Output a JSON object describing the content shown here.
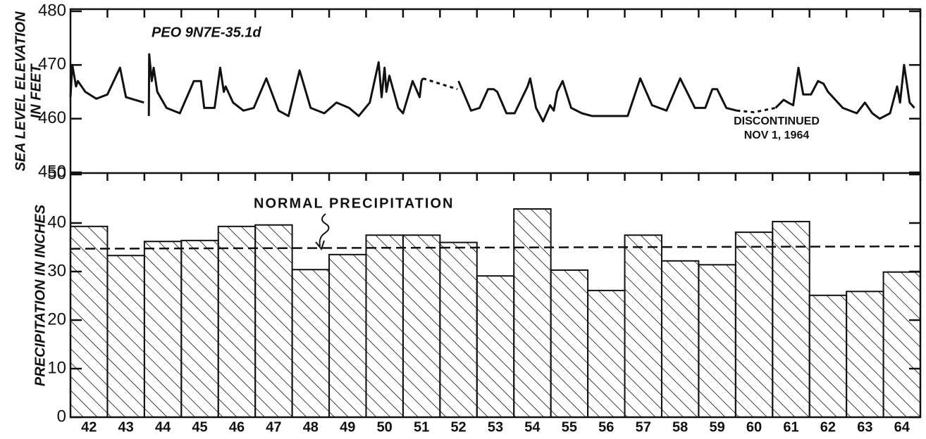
{
  "chart_data": [
    {
      "type": "line",
      "annotations": [
        "PEO 9N7E-35.1d",
        "DISCONTINUED",
        "NOV 1, 1964"
      ],
      "y_label": [
        "SEA LEVEL ELEVATION",
        "IN FEET"
      ],
      "xlim": [
        42,
        65
      ],
      "ylim": [
        450,
        480
      ],
      "yticks": [
        450,
        460,
        470,
        480
      ],
      "series": [
        {
          "color": "#111",
          "dash": false,
          "x": [
            42.0,
            42.05,
            42.15,
            42.2,
            42.4,
            42.7,
            43.0,
            43.34,
            43.5,
            43.99,
            44.05,
            44.12,
            44.13,
            44.2,
            44.25,
            44.35,
            44.6,
            44.96,
            45.34,
            45.53,
            45.62,
            45.9,
            46.05,
            46.15,
            46.2,
            46.4,
            46.68,
            46.96,
            47.3,
            47.63,
            47.9,
            48.2,
            48.5,
            48.87,
            49.2,
            49.54,
            49.8,
            50.1,
            50.34,
            50.42,
            50.5,
            50.55,
            50.63,
            50.87,
            51.0,
            51.26,
            51.45,
            51.5,
            51.54,
            52.0,
            52.5,
            52.84,
            53.07,
            53.3,
            53.45,
            53.55,
            53.8,
            54.02,
            54.37,
            54.44,
            54.6,
            54.79,
            54.98,
            55.08,
            55.17,
            55.32,
            55.55,
            55.84,
            56.12,
            57.08,
            57.42,
            57.74,
            58.13,
            58.5,
            58.9,
            59.18,
            59.37,
            59.5,
            59.75,
            60.03,
            60.5,
            61.08,
            61.3,
            61.42,
            61.56,
            61.7,
            61.83,
            62.04,
            62.23,
            62.38,
            62.5,
            62.9,
            63.28,
            63.5,
            63.7,
            63.9,
            64.18,
            64.37,
            64.45,
            64.56,
            64.71,
            64.84
          ],
          "values": [
            464,
            470,
            466,
            467,
            465,
            463.7,
            464.5,
            469.5,
            464,
            463,
            null,
            460.5,
            472,
            467,
            469.5,
            465,
            462,
            461,
            467,
            467,
            462,
            462,
            469.5,
            465,
            466,
            463,
            461.5,
            462,
            467.5,
            461.5,
            460.5,
            469,
            462,
            461,
            463,
            462,
            460.5,
            463,
            470.5,
            464,
            469.5,
            465,
            468,
            462,
            461,
            467,
            464,
            467,
            467.5,
            null,
            467,
            461.5,
            462,
            465.5,
            465.5,
            465,
            461,
            461,
            466,
            467.5,
            462,
            459.5,
            462.5,
            461.5,
            465,
            467,
            462,
            461,
            460.5,
            460.5,
            467.5,
            462.5,
            461.5,
            467.5,
            462,
            462,
            465.5,
            465.5,
            462,
            461.5,
            null,
            462,
            463.5,
            463,
            462.5,
            469.5,
            464.5,
            464.5,
            467,
            466.5,
            465,
            462,
            461,
            463,
            461,
            460,
            461,
            466,
            463,
            470,
            463,
            462
          ]
        },
        {
          "color": "#111",
          "dash": true,
          "x": [
            51.54,
            52.0,
            52.47
          ],
          "values": [
            467.5,
            466.5,
            465.5
          ]
        },
        {
          "color": "#111",
          "dash": true,
          "x": [
            60.03,
            60.5,
            61.08
          ],
          "values": [
            461.5,
            461.2,
            462
          ]
        }
      ]
    },
    {
      "type": "bar",
      "y_label": "PRECIPITATION IN INCHES",
      "annotations": [
        "NORMAL PRECIPITATION"
      ],
      "reference_line": [
        34.7,
        35.2
      ],
      "categories": [
        "42",
        "43",
        "44",
        "45",
        "46",
        "47",
        "48",
        "49",
        "50",
        "51",
        "52",
        "53",
        "54",
        "55",
        "56",
        "57",
        "58",
        "59",
        "60",
        "61",
        "62",
        "63",
        "64"
      ],
      "values": [
        39.3,
        33.3,
        36.2,
        36.4,
        39.3,
        39.6,
        30.4,
        33.5,
        37.5,
        37.5,
        36,
        29.1,
        42.9,
        30.3,
        26.1,
        37.5,
        32.2,
        31.4,
        38.1,
        40.3,
        25.1,
        25.9,
        29.9
      ],
      "color": "#111",
      "hatch": true,
      "ylim": [
        0,
        50
      ],
      "yticks": [
        0,
        10,
        20,
        30,
        40,
        50
      ]
    }
  ]
}
